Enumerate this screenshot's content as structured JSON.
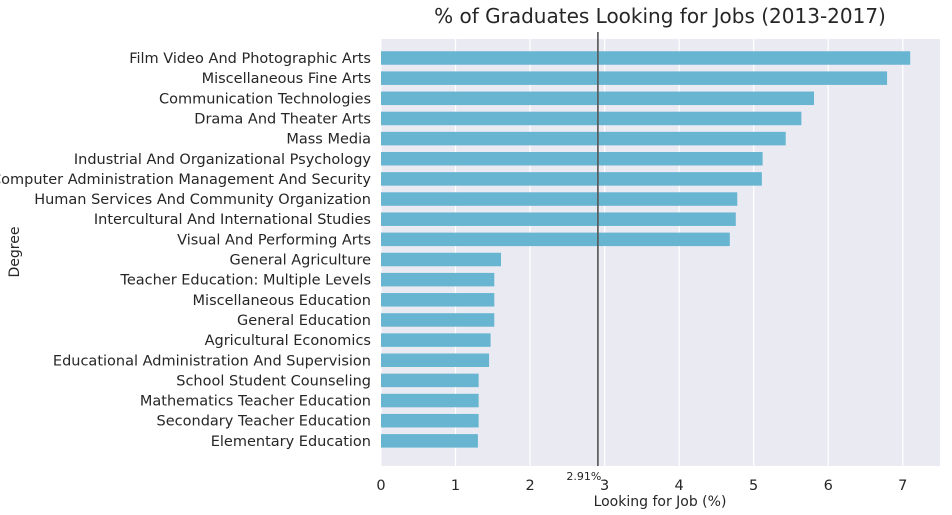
{
  "chart_data": {
    "type": "bar",
    "orientation": "horizontal",
    "title": "% of Graduates Looking for Jobs (2013-2017)",
    "xlabel": "Looking for Job (%)",
    "ylabel": "Degree",
    "xlim": [
      0,
      7.5
    ],
    "xticks": [
      0,
      1,
      2,
      3,
      4,
      5,
      6,
      7
    ],
    "grid": true,
    "bar_color": "#67b5d1",
    "background_color": "#eaeaf2",
    "reference_line": {
      "value": 2.91,
      "label": "2.91%",
      "color": "#555555"
    },
    "categories": [
      "Film Video And Photographic Arts",
      "Miscellaneous Fine Arts",
      "Communication Technologies",
      "Drama And Theater Arts",
      "Mass Media",
      "Industrial And Organizational Psychology",
      "Computer Administration Management And Security",
      "Human Services And Community Organization",
      "Intercultural And International Studies",
      "Visual And Performing Arts",
      "General Agriculture",
      "Teacher Education: Multiple Levels",
      "Miscellaneous Education",
      "General Education",
      "Agricultural Economics",
      "Educational Administration And Supervision",
      "School Student Counseling",
      "Mathematics Teacher Education",
      "Secondary Teacher Education",
      "Elementary Education"
    ],
    "values": [
      7.1,
      6.79,
      5.81,
      5.64,
      5.43,
      5.12,
      5.11,
      4.78,
      4.76,
      4.68,
      1.61,
      1.52,
      1.52,
      1.52,
      1.47,
      1.45,
      1.31,
      1.31,
      1.31,
      1.3
    ]
  }
}
